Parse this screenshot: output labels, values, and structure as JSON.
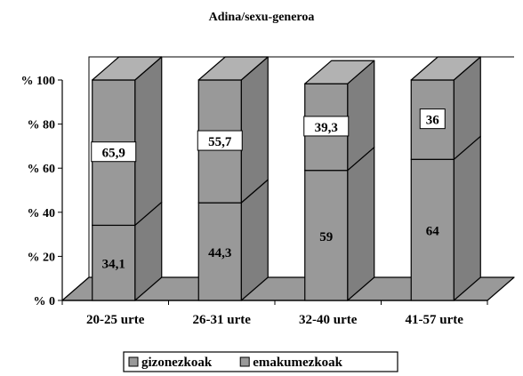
{
  "chart_data": {
    "type": "bar",
    "stacked": true,
    "three_d": true,
    "title": "Adina/sexu-generoa",
    "categories": [
      "20-25 urte",
      "26-31 urte",
      "32-40 urte",
      "41-57 urte"
    ],
    "series": [
      {
        "name": "gizonezkoak",
        "values": [
          34.1,
          44.3,
          59,
          64
        ],
        "labels": [
          "34,1",
          "44,3",
          "59",
          "64"
        ]
      },
      {
        "name": "emakumezkoak",
        "values": [
          65.9,
          55.7,
          39.3,
          36
        ],
        "labels": [
          "65,9",
          "55,7",
          "39,3",
          "36"
        ]
      }
    ],
    "yticks": [
      "% 0",
      "% 20",
      "% 40",
      "% 60",
      "% 80",
      "% 100"
    ],
    "ylim": [
      0,
      100
    ],
    "colors": {
      "bar": "#999999",
      "side": "#7f7f7f",
      "top": "#b2b2b2",
      "floor": "#999999"
    },
    "grid": false,
    "legend_position": "bottom"
  }
}
